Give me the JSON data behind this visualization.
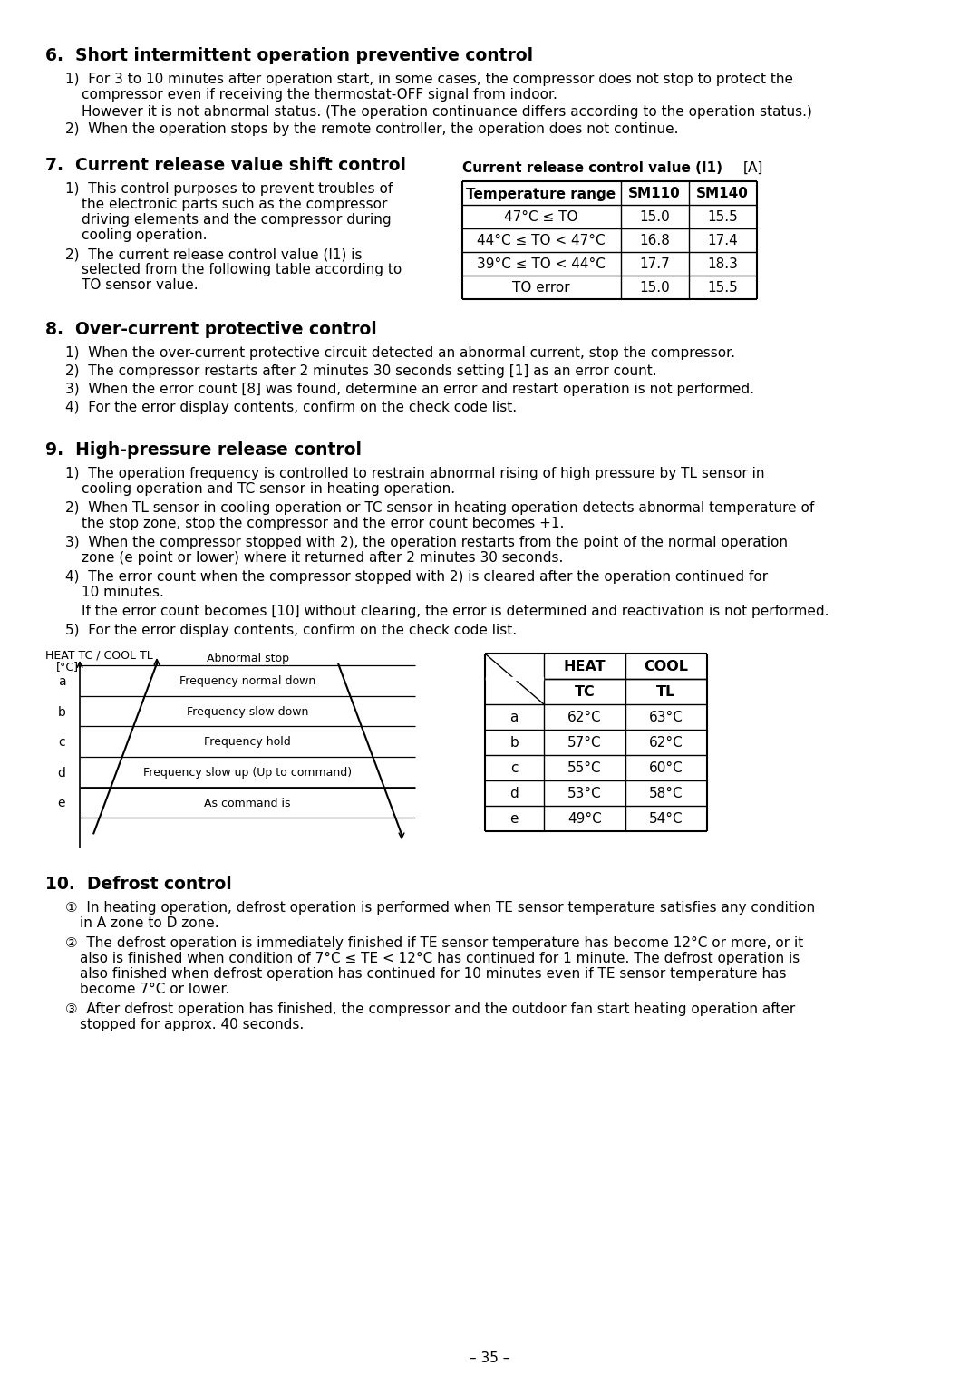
{
  "page_number": "35",
  "background_color": "#ffffff",
  "text_color": "#000000",
  "section6_title": "6.  Short intermittent operation preventive control",
  "section7_title": "7.  Current release value shift control",
  "table7_title_left": "Current release control value (I1)",
  "table7_title_right": "[A]",
  "table7_headers": [
    "Temperature range",
    "SM110",
    "SM140"
  ],
  "table7_rows": [
    [
      "47°C ≤ TO",
      "15.0",
      "15.5"
    ],
    [
      "44°C ≤ TO < 47°C",
      "16.8",
      "17.4"
    ],
    [
      "39°C ≤ TO < 44°C",
      "17.7",
      "18.3"
    ],
    [
      "TO error",
      "15.0",
      "15.5"
    ]
  ],
  "section8_title": "8.  Over-current protective control",
  "section9_title": "9.  High-pressure release control",
  "diagram_zones": [
    "a",
    "b",
    "c",
    "d",
    "e"
  ],
  "diagram_zone_labels": [
    "Abnormal stop",
    "Frequency normal down",
    "Frequency slow down",
    "Frequency hold",
    "Frequency slow up (Up to command)",
    "As command is"
  ],
  "table9_rows": [
    [
      "a",
      "62°C",
      "63°C"
    ],
    [
      "b",
      "57°C",
      "62°C"
    ],
    [
      "c",
      "55°C",
      "60°C"
    ],
    [
      "d",
      "53°C",
      "58°C"
    ],
    [
      "e",
      "49°C",
      "54°C"
    ]
  ],
  "section10_title": "10.  Defrost control"
}
